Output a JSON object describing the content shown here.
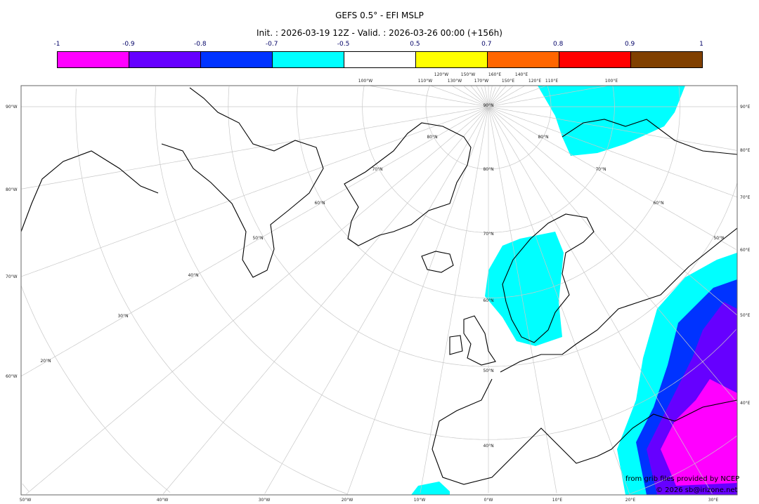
{
  "title": "GEFS 0.5° - EFI MSLP",
  "subtitle": "Init. : 2026-03-19 12Z - Valid. : 2026-03-26 00:00 (+156h)",
  "colorbar": {
    "labels": [
      "-1",
      "-0.9",
      "-0.8",
      "-0.7",
      "-0.5",
      "0.5",
      "0.7",
      "0.8",
      "0.9",
      "1"
    ],
    "colors": [
      "#ff00ff",
      "#6600ff",
      "#0033ff",
      "#00ffff",
      "#ffffff",
      "#ffff00",
      "#ff6600",
      "#ff0000",
      "#804000"
    ]
  },
  "map": {
    "projection": "polar stereographic",
    "top_labels": [
      "100°W",
      "110°W",
      "120°W",
      "130°W",
      "150°W",
      "170°W",
      "160°E",
      "150°E",
      "140°E",
      "120°E",
      "110°E",
      "100°E"
    ],
    "left_labels": [
      "90°W",
      "80°W",
      "70°W",
      "60°W"
    ],
    "right_labels": [
      "90°E",
      "80°E",
      "70°E",
      "60°E",
      "50°E",
      "40°E"
    ],
    "bottom_labels": [
      "50°W",
      "40°W",
      "30°W",
      "20°W",
      "10°W",
      "0°W",
      "10°E",
      "20°E",
      "30°E"
    ],
    "lat_labels": [
      "90°N",
      "80°N",
      "70°N",
      "60°N",
      "50°N",
      "40°N",
      "80°N",
      "70°N",
      "60°N",
      "50°N",
      "80°N",
      "70°N",
      "60°N",
      "50°N",
      "40°N",
      "30°N",
      "20°N"
    ],
    "credit_line1": "from grib files provided by NCEP",
    "credit_line2": "© 2026 sb@irizone.net"
  }
}
